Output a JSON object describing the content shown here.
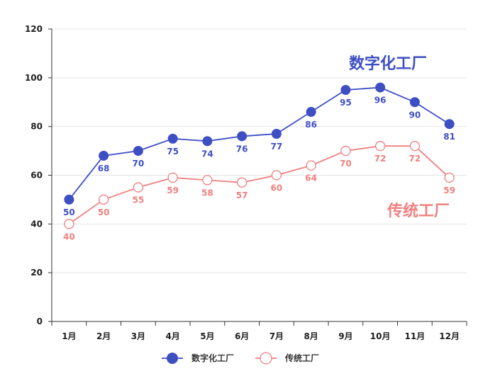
{
  "chart_data": {
    "type": "line",
    "categories": [
      "1月",
      "2月",
      "3月",
      "4月",
      "5月",
      "6月",
      "7月",
      "8月",
      "9月",
      "10月",
      "11月",
      "12月"
    ],
    "series": [
      {
        "name": "数字化工厂",
        "values": [
          50,
          68,
          70,
          75,
          74,
          76,
          77,
          86,
          95,
          96,
          90,
          81
        ],
        "color": "#3e4fc4",
        "marker": "filled"
      },
      {
        "name": "传统工厂",
        "values": [
          40,
          50,
          55,
          59,
          58,
          57,
          60,
          64,
          70,
          72,
          72,
          59
        ],
        "color": "#f08080",
        "marker": "hollow"
      }
    ],
    "ylim": [
      0,
      120
    ],
    "yticks": [
      0,
      20,
      40,
      60,
      80,
      100,
      120
    ],
    "grid": true,
    "legend": "bottom",
    "annotations": [
      "数字化工厂",
      "传统工厂"
    ]
  }
}
